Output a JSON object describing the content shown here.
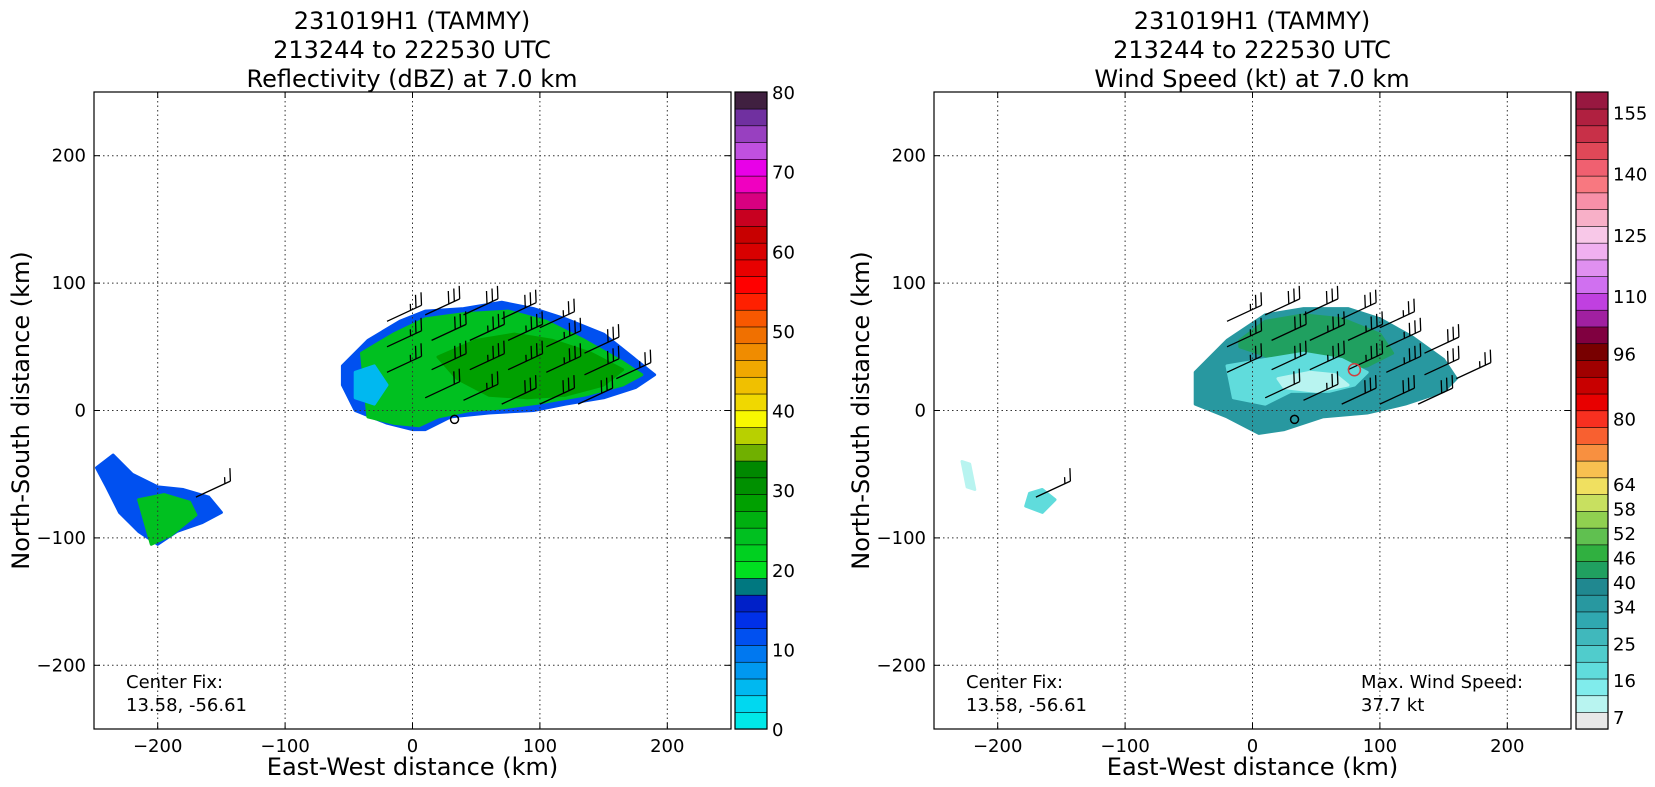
{
  "chart_data": [
    {
      "type": "heatmap",
      "title_lines": [
        "231019H1 (TAMMY)",
        "213244 to 222530 UTC",
        "Reflectivity (dBZ) at 7.0 km"
      ],
      "xlabel": "East-West distance (km)",
      "ylabel": "North-South distance (km)",
      "xlim": [
        -250,
        250
      ],
      "ylim": [
        -250,
        250
      ],
      "xticks": [
        -200,
        -100,
        0,
        100,
        200
      ],
      "yticks": [
        -200,
        -100,
        0,
        100,
        200
      ],
      "grid": true,
      "annotations": [
        {
          "lines": [
            "Center Fix:",
            "13.58, -56.61"
          ],
          "placement": "bottom-left"
        }
      ],
      "colorbar": {
        "min": 0,
        "max": 80,
        "ticks": [
          0,
          10,
          20,
          30,
          40,
          50,
          60,
          70,
          80
        ],
        "colors": [
          "#00e8e8",
          "#00d8f0",
          "#00b8f0",
          "#0098f0",
          "#0078f0",
          "#0050f0",
          "#0030e8",
          "#0020c8",
          "#007880",
          "#00e020",
          "#00d020",
          "#00c020",
          "#00b010",
          "#00a000",
          "#009000",
          "#008800",
          "#70b000",
          "#b8d000",
          "#f8f800",
          "#f0d800",
          "#f0c000",
          "#f0a800",
          "#f08c00",
          "#f07000",
          "#f85800",
          "#ff2000",
          "#ff0000",
          "#e80000",
          "#d80000",
          "#c80000",
          "#c80020",
          "#d80080",
          "#f000c0",
          "#e800e8",
          "#c050e0",
          "#9840c0",
          "#7030a0",
          "#402040"
        ]
      },
      "regions": [
        {
          "x": [
            -55,
            -35,
            -10,
            10,
            40,
            70,
            95,
            120,
            150,
            175,
            190,
            175,
            150,
            120,
            95,
            60,
            30,
            10,
            0,
            -20,
            -45,
            -55
          ],
          "y": [
            35,
            55,
            70,
            78,
            80,
            85,
            80,
            72,
            60,
            40,
            28,
            18,
            10,
            5,
            0,
            -2,
            -5,
            -15,
            -15,
            -10,
            0,
            20
          ],
          "fill": "#0050f0"
        },
        {
          "x": [
            -40,
            -15,
            10,
            40,
            75,
            105,
            135,
            165,
            180,
            165,
            135,
            100,
            70,
            45,
            20,
            5,
            -15,
            -35
          ],
          "y": [
            45,
            60,
            72,
            76,
            78,
            70,
            55,
            38,
            28,
            20,
            12,
            6,
            2,
            0,
            -5,
            -12,
            -10,
            -5
          ],
          "fill": "#00c020"
        },
        {
          "x": [
            20,
            50,
            80,
            110,
            140,
            165,
            150,
            120,
            90,
            60,
            35
          ],
          "y": [
            42,
            55,
            60,
            55,
            45,
            32,
            20,
            12,
            10,
            12,
            25
          ],
          "fill": "#00a000"
        },
        {
          "x": [
            -45,
            -30,
            -20,
            -30,
            -45
          ],
          "y": [
            30,
            35,
            20,
            5,
            10
          ],
          "fill": "#00b8f0"
        },
        {
          "x": [
            -235,
            -220,
            -200,
            -180,
            -160,
            -150,
            -165,
            -185,
            -200,
            -215,
            -230,
            -240,
            -248
          ],
          "y": [
            -35,
            -50,
            -60,
            -62,
            -68,
            -80,
            -88,
            -95,
            -105,
            -95,
            -80,
            -60,
            -45
          ],
          "fill": "#0050f0"
        },
        {
          "x": [
            -215,
            -195,
            -175,
            -170,
            -190,
            -205
          ],
          "y": [
            -70,
            -66,
            -72,
            -82,
            -98,
            -105
          ],
          "fill": "#00c020"
        }
      ]
    },
    {
      "type": "heatmap",
      "title_lines": [
        "231019H1 (TAMMY)",
        "213244 to 222530 UTC",
        "Wind Speed (kt) at 7.0 km"
      ],
      "xlabel": "East-West distance (km)",
      "ylabel": "North-South distance (km)",
      "xlim": [
        -250,
        250
      ],
      "ylim": [
        -250,
        250
      ],
      "xticks": [
        -200,
        -100,
        0,
        100,
        200
      ],
      "yticks": [
        -200,
        -100,
        0,
        100,
        200
      ],
      "grid": true,
      "annotations": [
        {
          "lines": [
            "Center Fix:",
            "13.58, -56.61"
          ],
          "placement": "bottom-left"
        },
        {
          "lines": [
            "Max. Wind Speed:",
            "37.7 kt"
          ],
          "placement": "bottom-right"
        }
      ],
      "colorbar": {
        "min": 4,
        "max": 160,
        "ticks": [
          7,
          16,
          25,
          34,
          40,
          46,
          52,
          58,
          64,
          80,
          96,
          110,
          125,
          140,
          155
        ],
        "colors": [
          "#e8e8e8",
          "#b8f4f0",
          "#80ecec",
          "#60dcdc",
          "#50cccc",
          "#40b8bc",
          "#30a8b0",
          "#2898a0",
          "#208890",
          "#20a060",
          "#30b040",
          "#60c050",
          "#90d050",
          "#c8e060",
          "#f0e060",
          "#f8c050",
          "#f89040",
          "#f86030",
          "#f83020",
          "#e80000",
          "#c80000",
          "#a00000",
          "#780000",
          "#800040",
          "#a020a0",
          "#c040e0",
          "#d070f0",
          "#e090f0",
          "#f0b0f0",
          "#f8c8e8",
          "#f8b0c8",
          "#f890a8",
          "#f87880",
          "#f06070",
          "#e04858",
          "#c83048",
          "#b02040",
          "#981840"
        ]
      },
      "regions": [
        {
          "x": [
            -45,
            -20,
            10,
            40,
            75,
            100,
            125,
            150,
            160,
            150,
            120,
            90,
            55,
            25,
            5,
            -20,
            -45
          ],
          "y": [
            30,
            55,
            75,
            80,
            80,
            72,
            58,
            40,
            25,
            15,
            5,
            -2,
            -5,
            -15,
            -18,
            -5,
            5
          ],
          "fill": "#2898a0"
        },
        {
          "x": [
            -10,
            10,
            40,
            70,
            100,
            110,
            90,
            60,
            30,
            5,
            -10
          ],
          "y": [
            55,
            70,
            75,
            72,
            60,
            45,
            35,
            30,
            35,
            45,
            50
          ],
          "fill": "#20a060"
        },
        {
          "x": [
            -20,
            10,
            40,
            70,
            90,
            80,
            60,
            30,
            10,
            -15
          ],
          "y": [
            35,
            40,
            45,
            40,
            30,
            20,
            15,
            15,
            5,
            10
          ],
          "fill": "#60dcdc"
        },
        {
          "x": [
            20,
            45,
            65,
            75,
            50,
            25
          ],
          "y": [
            25,
            30,
            28,
            20,
            15,
            18
          ],
          "fill": "#b8f4f0"
        },
        {
          "x": [
            -175,
            -165,
            -155,
            -165,
            -178
          ],
          "y": [
            -65,
            -62,
            -70,
            -80,
            -75
          ],
          "fill": "#60dcdc"
        },
        {
          "x": [
            -228,
            -222,
            -218,
            -224
          ],
          "y": [
            -40,
            -42,
            -62,
            -60
          ],
          "fill": "#b8f4f0"
        }
      ],
      "marker": {
        "x": 80,
        "y": 32
      }
    }
  ],
  "barbs": [
    {
      "x": -20,
      "y": 70,
      "speed": 25
    },
    {
      "x": 10,
      "y": 75,
      "speed": 30
    },
    {
      "x": 40,
      "y": 75,
      "speed": 30
    },
    {
      "x": 70,
      "y": 72,
      "speed": 30
    },
    {
      "x": 100,
      "y": 65,
      "speed": 25
    },
    {
      "x": -20,
      "y": 50,
      "speed": 25
    },
    {
      "x": 15,
      "y": 55,
      "speed": 30
    },
    {
      "x": 45,
      "y": 55,
      "speed": 35
    },
    {
      "x": 75,
      "y": 55,
      "speed": 35
    },
    {
      "x": 105,
      "y": 50,
      "speed": 35
    },
    {
      "x": 135,
      "y": 45,
      "speed": 30
    },
    {
      "x": -20,
      "y": 30,
      "speed": 25
    },
    {
      "x": 15,
      "y": 32,
      "speed": 30
    },
    {
      "x": 45,
      "y": 32,
      "speed": 35
    },
    {
      "x": 75,
      "y": 32,
      "speed": 35
    },
    {
      "x": 105,
      "y": 30,
      "speed": 35
    },
    {
      "x": 135,
      "y": 28,
      "speed": 30
    },
    {
      "x": 160,
      "y": 25,
      "speed": 25
    },
    {
      "x": 10,
      "y": 10,
      "speed": 20
    },
    {
      "x": 40,
      "y": 8,
      "speed": 25
    },
    {
      "x": 70,
      "y": 5,
      "speed": 30
    },
    {
      "x": 100,
      "y": 5,
      "speed": 30
    },
    {
      "x": 130,
      "y": 5,
      "speed": 30
    },
    {
      "x": -170,
      "y": -68,
      "speed": 15
    }
  ],
  "center_marker": {
    "x": 33,
    "y": -7
  }
}
